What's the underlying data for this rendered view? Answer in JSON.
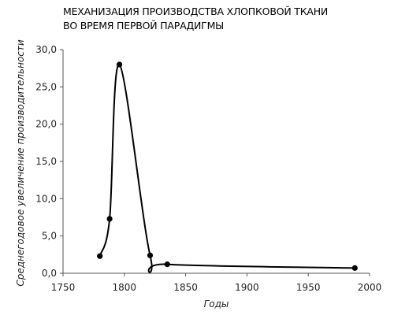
{
  "chart_data": {
    "type": "line",
    "title_line1": "МЕХАНИЗАЦИЯ ПРОИЗВОДСТВА ХЛОПКОВОЙ ТКАНИ",
    "title_line2": "ВО ВРЕМЯ ПЕРВОЙ ПАРАДИГМЫ",
    "xlabel": "Годы",
    "ylabel": "Среднегодовое увеличение производительности",
    "xlim": [
      1750,
      2000
    ],
    "ylim": [
      0,
      30
    ],
    "x_ticks": [
      "1750",
      "1800",
      "1850",
      "1900",
      "1950",
      "2000"
    ],
    "y_ticks": [
      "0,0",
      "5,0",
      "10,0",
      "15,0",
      "20,0",
      "25,0",
      "30,0"
    ],
    "grid": false,
    "smooth": true,
    "series": [
      {
        "x": [
          1780,
          1788,
          1796,
          1821,
          1835,
          1988
        ],
        "y": [
          2.3,
          7.3,
          28.0,
          2.4,
          1.2,
          0.7
        ]
      }
    ]
  }
}
